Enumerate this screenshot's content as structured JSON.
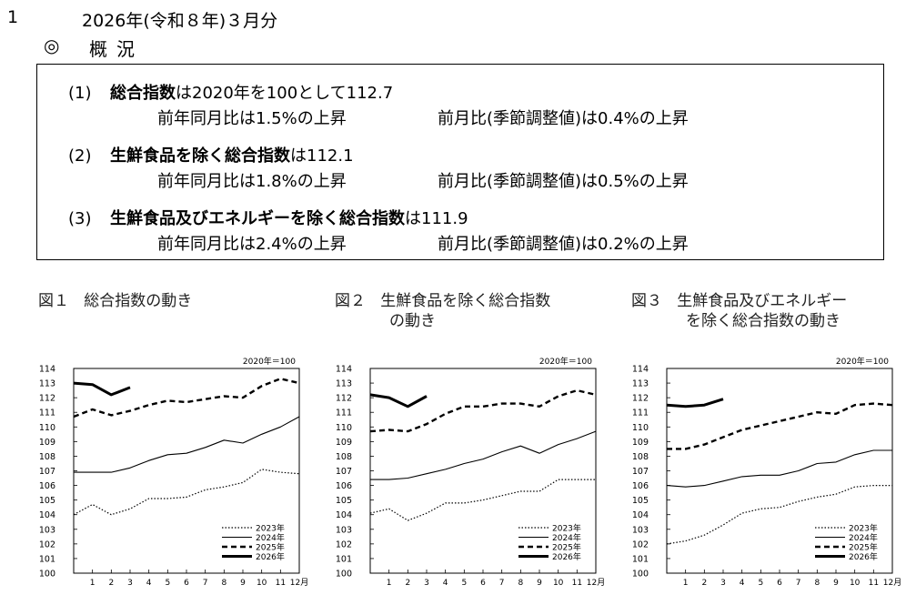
{
  "header": {
    "section_number": "1",
    "title": "2026年(令和８年)３月分",
    "overview_mark": "◎",
    "overview_title": "概況"
  },
  "summary": [
    {
      "num": "(1)",
      "name": "総合指数",
      "text": "は2020年を100として112.7",
      "yoy": "前年同月比は1.5%の上昇",
      "mom": "前月比(季節調整値)は0.4%の上昇"
    },
    {
      "num": "(2)",
      "name": "生鮮食品を除く総合指数",
      "text": "は112.1",
      "yoy": "前年同月比は1.8%の上昇",
      "mom": "前月比(季節調整値)は0.5%の上昇"
    },
    {
      "num": "(3)",
      "name": "生鮮食品及びエネルギーを除く総合指数",
      "text": "は111.9",
      "yoy": "前年同月比は2.4%の上昇",
      "mom": "前月比(季節調整値)は0.2%の上昇"
    }
  ],
  "figures": [
    {
      "label": "図１",
      "title_line1": "総合指数の動き",
      "title_line2": ""
    },
    {
      "label": "図２",
      "title_line1": "生鮮食品を除く総合指数",
      "title_line2": "の動き"
    },
    {
      "label": "図３",
      "title_line1": "生鮮食品及びエネルギー",
      "title_line2": "を除く総合指数の動き"
    }
  ],
  "chart_data": [
    {
      "type": "line",
      "base_note": "2020年＝100",
      "x": [
        1,
        2,
        3,
        4,
        5,
        6,
        7,
        8,
        9,
        10,
        11,
        12
      ],
      "x_tick_labels": [
        "1",
        "2",
        "3",
        "4",
        "5",
        "6",
        "7",
        "8",
        "9",
        "10",
        "11",
        "12月"
      ],
      "ylim": [
        100,
        114
      ],
      "y_ticks": [
        100,
        101,
        102,
        103,
        104,
        105,
        106,
        107,
        108,
        109,
        110,
        111,
        112,
        113,
        114
      ],
      "legend_position": "bottom-right",
      "series": [
        {
          "name": "2023年",
          "style": "dotted",
          "x": [
            0,
            1,
            2,
            3,
            4,
            5,
            6,
            7,
            8,
            9,
            10,
            11,
            12
          ],
          "values": [
            104.0,
            104.7,
            104.0,
            104.4,
            105.1,
            105.1,
            105.2,
            105.7,
            105.9,
            106.2,
            107.1,
            106.9,
            106.8
          ]
        },
        {
          "name": "2024年",
          "style": "thin",
          "x": [
            0,
            1,
            2,
            3,
            4,
            5,
            6,
            7,
            8,
            9,
            10,
            11,
            12
          ],
          "values": [
            106.9,
            106.9,
            106.9,
            107.2,
            107.7,
            108.1,
            108.2,
            108.6,
            109.1,
            108.9,
            109.5,
            110.0,
            110.7
          ]
        },
        {
          "name": "2025年",
          "style": "dashed",
          "x": [
            0,
            1,
            2,
            3,
            4,
            5,
            6,
            7,
            8,
            9,
            10,
            11,
            12
          ],
          "values": [
            110.7,
            111.2,
            110.8,
            111.1,
            111.5,
            111.8,
            111.7,
            111.9,
            112.1,
            112.0,
            112.8,
            113.3,
            113.0
          ]
        },
        {
          "name": "2026年",
          "style": "thick",
          "x": [
            0,
            1,
            2,
            3
          ],
          "values": [
            113.0,
            112.9,
            112.2,
            112.7
          ]
        }
      ]
    },
    {
      "type": "line",
      "base_note": "2020年＝100",
      "x": [
        1,
        2,
        3,
        4,
        5,
        6,
        7,
        8,
        9,
        10,
        11,
        12
      ],
      "x_tick_labels": [
        "1",
        "2",
        "3",
        "4",
        "5",
        "6",
        "7",
        "8",
        "9",
        "10",
        "11",
        "12月"
      ],
      "ylim": [
        100,
        114
      ],
      "y_ticks": [
        100,
        101,
        102,
        103,
        104,
        105,
        106,
        107,
        108,
        109,
        110,
        111,
        112,
        113,
        114
      ],
      "legend_position": "bottom-right",
      "series": [
        {
          "name": "2023年",
          "style": "dotted",
          "x": [
            0,
            1,
            2,
            3,
            4,
            5,
            6,
            7,
            8,
            9,
            10,
            11,
            12
          ],
          "values": [
            104.1,
            104.4,
            103.6,
            104.1,
            104.8,
            104.8,
            105.0,
            105.3,
            105.6,
            105.6,
            106.4,
            106.4,
            106.4
          ]
        },
        {
          "name": "2024年",
          "style": "thin",
          "x": [
            0,
            1,
            2,
            3,
            4,
            5,
            6,
            7,
            8,
            9,
            10,
            11,
            12
          ],
          "values": [
            106.4,
            106.4,
            106.5,
            106.8,
            107.1,
            107.5,
            107.8,
            108.3,
            108.7,
            108.2,
            108.8,
            109.2,
            109.7
          ]
        },
        {
          "name": "2025年",
          "style": "dashed",
          "x": [
            0,
            1,
            2,
            3,
            4,
            5,
            6,
            7,
            8,
            9,
            10,
            11,
            12
          ],
          "values": [
            109.7,
            109.8,
            109.7,
            110.2,
            110.9,
            111.4,
            111.4,
            111.6,
            111.6,
            111.4,
            112.1,
            112.5,
            112.2
          ]
        },
        {
          "name": "2026年",
          "style": "thick",
          "x": [
            0,
            1,
            2,
            3
          ],
          "values": [
            112.2,
            112.0,
            111.4,
            112.1
          ]
        }
      ]
    },
    {
      "type": "line",
      "base_note": "2020年＝100",
      "x": [
        1,
        2,
        3,
        4,
        5,
        6,
        7,
        8,
        9,
        10,
        11,
        12
      ],
      "x_tick_labels": [
        "1",
        "2",
        "3",
        "4",
        "5",
        "6",
        "7",
        "8",
        "9",
        "10",
        "11",
        "12月"
      ],
      "ylim": [
        100,
        114
      ],
      "y_ticks": [
        100,
        101,
        102,
        103,
        104,
        105,
        106,
        107,
        108,
        109,
        110,
        111,
        112,
        113,
        114
      ],
      "legend_position": "bottom-right",
      "series": [
        {
          "name": "2023年",
          "style": "dotted",
          "x": [
            0,
            1,
            2,
            3,
            4,
            5,
            6,
            7,
            8,
            9,
            10,
            11,
            12
          ],
          "values": [
            102.0,
            102.2,
            102.6,
            103.3,
            104.1,
            104.4,
            104.5,
            104.9,
            105.2,
            105.4,
            105.9,
            106.0,
            106.0
          ]
        },
        {
          "name": "2024年",
          "style": "thin",
          "x": [
            0,
            1,
            2,
            3,
            4,
            5,
            6,
            7,
            8,
            9,
            10,
            11,
            12
          ],
          "values": [
            106.0,
            105.9,
            106.0,
            106.3,
            106.6,
            106.7,
            106.7,
            107.0,
            107.5,
            107.6,
            108.1,
            108.4,
            108.4
          ]
        },
        {
          "name": "2025年",
          "style": "dashed",
          "x": [
            0,
            1,
            2,
            3,
            4,
            5,
            6,
            7,
            8,
            9,
            10,
            11,
            12
          ],
          "values": [
            108.5,
            108.5,
            108.8,
            109.3,
            109.8,
            110.1,
            110.4,
            110.7,
            111.0,
            110.9,
            111.5,
            111.6,
            111.5
          ]
        },
        {
          "name": "2026年",
          "style": "thick",
          "x": [
            0,
            1,
            2,
            3
          ],
          "values": [
            111.5,
            111.4,
            111.5,
            111.9
          ]
        }
      ]
    }
  ]
}
